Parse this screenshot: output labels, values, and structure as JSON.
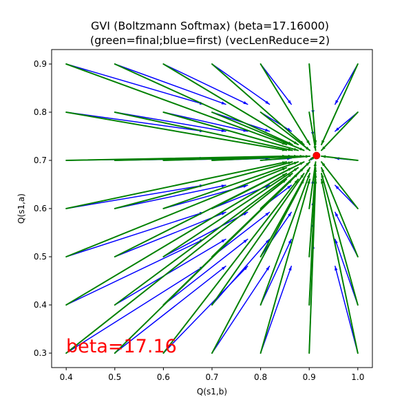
{
  "chart_data": {
    "type": "quiver",
    "title_line1": "GVI (Boltzmann Softmax) (beta=17.16000)",
    "title_line2": "(green=final;blue=first) (vecLenReduce=2)",
    "xlabel": "Q(s1,b)",
    "ylabel": "Q(s1,a)",
    "xlim": [
      0.37,
      1.03
    ],
    "ylim": [
      0.27,
      0.93
    ],
    "x_ticks": [
      "0.4",
      "0.5",
      "0.6",
      "0.7",
      "0.8",
      "0.9",
      "1.0"
    ],
    "y_ticks": [
      "0.3",
      "0.4",
      "0.5",
      "0.6",
      "0.7",
      "0.8",
      "0.9"
    ],
    "grid": false,
    "annotation": "beta=17.16",
    "fixed_point": {
      "x": 0.915,
      "y": 0.71
    },
    "grid_x": [
      0.4,
      0.5,
      0.6,
      0.7,
      0.8,
      0.9,
      1.0
    ],
    "grid_y": [
      0.3,
      0.4,
      0.5,
      0.6,
      0.7,
      0.8,
      0.9
    ],
    "first_color": "#0000ff",
    "final_color": "#008000",
    "fixed_point_color": "#ff0000"
  }
}
